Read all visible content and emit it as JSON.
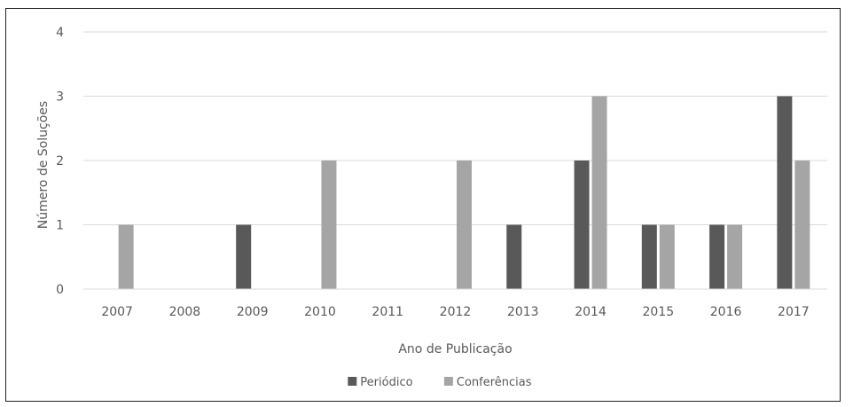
{
  "chart_data": {
    "type": "bar",
    "categories": [
      "2007",
      "2008",
      "2009",
      "2010",
      "2011",
      "2012",
      "2013",
      "2014",
      "2015",
      "2016",
      "2017"
    ],
    "series": [
      {
        "name": "Periódico",
        "color": "#595959",
        "values": [
          0,
          0,
          1,
          0,
          0,
          0,
          1,
          2,
          1,
          1,
          3
        ]
      },
      {
        "name": "Conferências",
        "color": "#a5a5a5",
        "values": [
          1,
          0,
          0,
          2,
          0,
          2,
          0,
          3,
          1,
          1,
          2
        ]
      }
    ],
    "title": "",
    "xlabel": "Ano de Publicação",
    "ylabel": "Número de Soluções",
    "ylim": [
      0,
      4
    ],
    "yticks": [
      "0",
      "1",
      "2",
      "3",
      "4"
    ],
    "grid": true,
    "legend": "bottom-center"
  }
}
